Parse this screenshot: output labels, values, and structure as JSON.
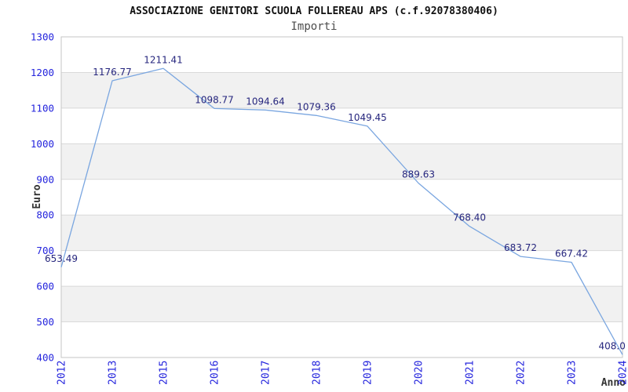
{
  "chart_data": {
    "type": "line",
    "title": "ASSOCIAZIONE GENITORI SCUOLA FOLLEREAU APS (c.f.92078380406)",
    "subtitle": "Importi",
    "xlabel": "Anno",
    "ylabel": "Euro",
    "categories": [
      "2012",
      "2013",
      "2015",
      "2016",
      "2017",
      "2018",
      "2019",
      "2020",
      "2021",
      "2022",
      "2023",
      "2024"
    ],
    "values": [
      653.49,
      1176.77,
      1211.41,
      1098.77,
      1094.64,
      1079.36,
      1049.45,
      889.63,
      768.4,
      683.72,
      667.42,
      408.0
    ],
    "point_labels": [
      "653.49",
      "1176.77",
      "1211.41",
      "1098.77",
      "1094.64",
      "1079.36",
      "1049.45",
      "889.63",
      "768.40",
      "683.72",
      "667.42",
      "408.0"
    ],
    "ylim": [
      400,
      1300
    ],
    "ytick_step": 100,
    "ytick_labels": [
      "400",
      "500",
      "600",
      "700",
      "800",
      "900",
      "1000",
      "1100",
      "1200",
      "1300"
    ],
    "grid": "horizontal-gridlines-with-alternating-bands",
    "legend": "none",
    "colors": {
      "line": "#7aa6e0",
      "tick_label": "#2424dd",
      "point_label": "#26267e",
      "band": "#f1f1f1",
      "gridline": "#d9d9d9",
      "plot_border": "#c6c6c6",
      "title": "#111111",
      "subtitle": "#4d4d4d",
      "axis_title": "#333333",
      "background": "#ffffff"
    }
  }
}
